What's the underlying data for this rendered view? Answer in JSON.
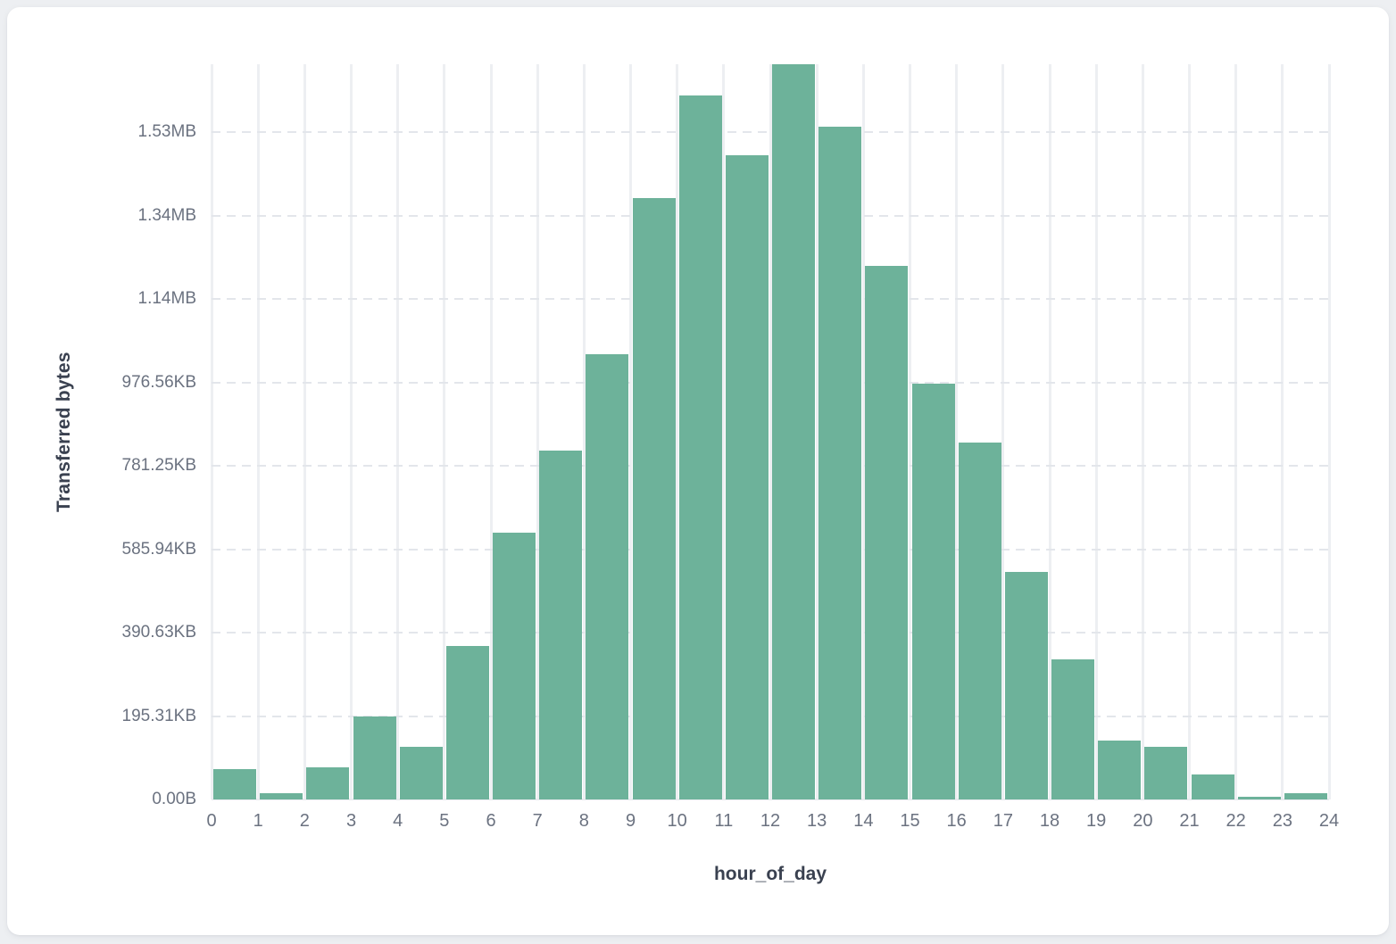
{
  "chart_data": {
    "type": "bar",
    "title": "",
    "xlabel": "hour_of_day",
    "ylabel": "Transferred bytes",
    "categories": [
      0,
      1,
      2,
      3,
      4,
      5,
      6,
      7,
      8,
      9,
      10,
      11,
      12,
      13,
      14,
      15,
      16,
      17,
      18,
      19,
      20,
      21,
      22,
      23
    ],
    "values_bytes": [
      73000,
      16000,
      77000,
      198000,
      126000,
      368000,
      640000,
      836000,
      1067000,
      1442000,
      1688000,
      1544000,
      1763000,
      1614000,
      1279000,
      997000,
      856000,
      546000,
      336000,
      141000,
      126000,
      60000,
      7500,
      14000
    ],
    "x_tick_labels": [
      "0",
      "1",
      "2",
      "3",
      "4",
      "5",
      "6",
      "7",
      "8",
      "9",
      "10",
      "11",
      "12",
      "13",
      "14",
      "15",
      "16",
      "17",
      "18",
      "19",
      "20",
      "21",
      "22",
      "23",
      "24"
    ],
    "y_ticks": [
      {
        "label": "0.00B",
        "bytes": 0
      },
      {
        "label": "195.31KB",
        "bytes": 200000
      },
      {
        "label": "390.63KB",
        "bytes": 400000
      },
      {
        "label": "585.94KB",
        "bytes": 600000
      },
      {
        "label": "781.25KB",
        "bytes": 800000
      },
      {
        "label": "976.56KB",
        "bytes": 1000000
      },
      {
        "label": "1.14MB",
        "bytes": 1200000
      },
      {
        "label": "1.34MB",
        "bytes": 1400000
      },
      {
        "label": "1.53MB",
        "bytes": 1600000
      }
    ],
    "y_axis_max_bytes": 1763000,
    "x_axis_range": [
      0,
      24
    ],
    "grid": true,
    "legend": "none",
    "colors": {
      "bar_fill": "#6db29a",
      "vertical_gridline": "#edeff2",
      "dashed_gridline": "#e3e6eb",
      "tick_text": "#6b7280",
      "axis_title_text": "#3a4150",
      "card_background": "#ffffff",
      "page_background": "#edeff2"
    }
  }
}
